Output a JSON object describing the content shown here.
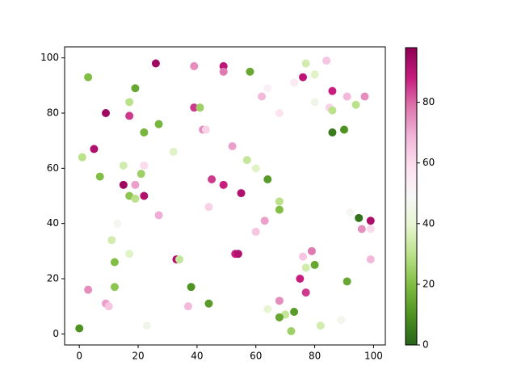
{
  "chart_data": {
    "type": "scatter",
    "x": [
      0,
      3,
      26,
      39,
      49,
      49,
      58,
      77,
      76,
      80,
      84,
      73,
      64,
      19,
      17,
      62,
      86,
      91,
      97,
      94,
      80,
      85,
      86,
      9,
      39,
      41,
      68,
      17,
      27,
      22,
      42,
      43,
      86,
      90,
      5,
      32,
      52,
      1,
      57,
      15,
      22,
      60,
      7,
      21,
      45,
      64,
      15,
      19,
      49,
      55,
      17,
      19,
      22,
      68,
      68,
      44,
      27,
      92,
      95,
      99,
      63,
      13,
      60,
      96,
      99,
      11,
      79,
      53,
      54,
      17,
      33,
      34,
      76,
      99,
      12,
      80,
      77,
      75,
      91,
      38,
      12,
      3,
      77,
      68,
      9,
      10,
      44,
      37,
      64,
      73,
      70,
      68,
      23,
      82,
      89,
      72
    ],
    "values": [
      2,
      93,
      98,
      97,
      97,
      95,
      95,
      98,
      93,
      94,
      99,
      91,
      89,
      89,
      84,
      86,
      88,
      86,
      86,
      83,
      84,
      82,
      81,
      80,
      82,
      82,
      80,
      79,
      76,
      73,
      74,
      74,
      73,
      74,
      67,
      66,
      68,
      64,
      63,
      61,
      61,
      60,
      57,
      58,
      56,
      56,
      54,
      54,
      54,
      51,
      50,
      49,
      50,
      48,
      45,
      46,
      43,
      44,
      42,
      41,
      41,
      40,
      37,
      38,
      38,
      34,
      30,
      29,
      29,
      29,
      27,
      27,
      28,
      27,
      26,
      25,
      24,
      20,
      19,
      17,
      17,
      16,
      15,
      12,
      11,
      10,
      11,
      10,
      9,
      8,
      7,
      6,
      3,
      3,
      5,
      1
    ],
    "color_values": [
      10,
      20,
      95,
      75,
      90,
      78,
      15,
      35,
      90,
      38,
      65,
      55,
      52,
      15,
      30,
      68,
      88,
      68,
      75,
      30,
      45,
      62,
      30,
      95,
      85,
      25,
      58,
      85,
      18,
      18,
      75,
      62,
      5,
      10,
      92,
      38,
      72,
      30,
      32,
      35,
      60,
      38,
      20,
      25,
      85,
      12,
      95,
      72,
      88,
      92,
      22,
      30,
      92,
      30,
      20,
      62,
      70,
      48,
      3,
      93,
      72,
      47,
      65,
      75,
      60,
      35,
      78,
      88,
      92,
      38,
      92,
      32,
      65,
      68,
      20,
      15,
      35,
      88,
      15,
      10,
      22,
      75,
      85,
      75,
      72,
      65,
      12,
      68,
      40,
      12,
      32,
      15,
      45,
      35,
      46,
      25
    ],
    "colormap": "PiYG_r",
    "xlim": [
      -5,
      104
    ],
    "xticks": [
      0,
      20,
      40,
      60,
      80,
      100
    ],
    "ylim": [
      -4,
      104
    ],
    "yticks": [
      0,
      20,
      40,
      60,
      80,
      100
    ],
    "colorbar": {
      "lim": [
        0,
        98
      ],
      "ticks": [
        0,
        20,
        40,
        60,
        80
      ]
    }
  }
}
